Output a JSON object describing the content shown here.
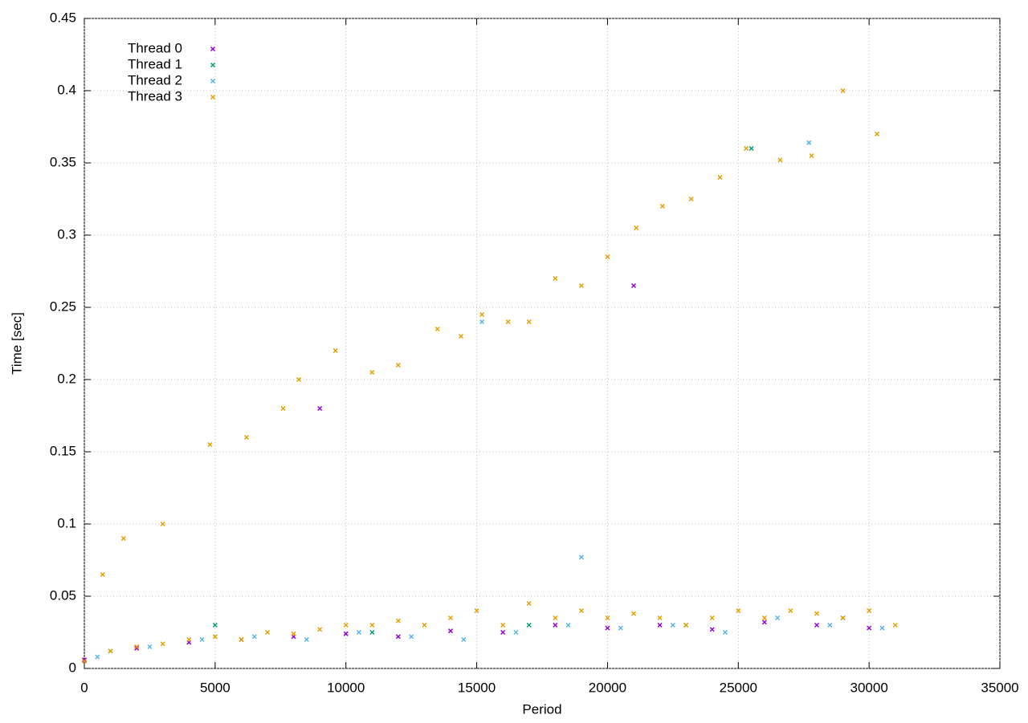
{
  "chart_data": {
    "type": "scatter",
    "x_label": "Period",
    "y_label": "Time [sec]",
    "xlim": [
      0,
      35000
    ],
    "xticks": [
      0,
      5000,
      10000,
      15000,
      20000,
      25000,
      30000,
      35000
    ],
    "ylim": [
      0,
      0.45
    ],
    "yticks": [
      0,
      0.05,
      0.1,
      0.15,
      0.2,
      0.25,
      0.3,
      0.35,
      0.4,
      0.45
    ],
    "grid": true,
    "legend": "top-left",
    "series": [
      {
        "name": "Thread 0",
        "color": "#9400d3",
        "x": [
          0,
          2000,
          4000,
          6000,
          8000,
          10000,
          12000,
          14000,
          16000,
          18000,
          20000,
          22000,
          24000,
          26000,
          28000,
          30000,
          9000,
          21000
        ],
        "values": [
          0.006,
          0.014,
          0.018,
          0.02,
          0.022,
          0.024,
          0.022,
          0.026,
          0.025,
          0.03,
          0.028,
          0.03,
          0.027,
          0.032,
          0.03,
          0.028,
          0.18,
          0.265
        ]
      },
      {
        "name": "Thread 1",
        "color": "#009e73",
        "x": [
          1000,
          5000,
          11000,
          17000,
          23000,
          29000,
          25500
        ],
        "values": [
          0.012,
          0.03,
          0.025,
          0.03,
          0.03,
          0.035,
          0.36
        ]
      },
      {
        "name": "Thread 2",
        "color": "#56b4e9",
        "x": [
          500,
          2500,
          4500,
          6500,
          8500,
          10500,
          12500,
          14500,
          16500,
          18500,
          20500,
          22500,
          24500,
          26500,
          28500,
          30500,
          19000,
          15200,
          27700
        ],
        "values": [
          0.008,
          0.015,
          0.02,
          0.022,
          0.02,
          0.025,
          0.022,
          0.02,
          0.025,
          0.03,
          0.028,
          0.03,
          0.025,
          0.035,
          0.03,
          0.028,
          0.077,
          0.24,
          0.364
        ]
      },
      {
        "name": "Thread 3",
        "color": "#e69f00",
        "x": [
          0,
          1000,
          2000,
          3000,
          4000,
          5000,
          6000,
          7000,
          8000,
          9000,
          10000,
          11000,
          12000,
          13000,
          14000,
          15000,
          16000,
          17000,
          18000,
          19000,
          20000,
          21000,
          22000,
          23000,
          24000,
          25000,
          26000,
          27000,
          28000,
          29000,
          30000,
          31000,
          700,
          1500,
          3000,
          4800,
          6200,
          7600,
          8200,
          9600,
          11000,
          12000,
          13500,
          14400,
          15200,
          16200,
          17000,
          18000,
          19000,
          20000,
          21100,
          22100,
          23200,
          24300,
          25300,
          26600,
          27800,
          29000,
          30300
        ],
        "values": [
          0.005,
          0.012,
          0.015,
          0.017,
          0.02,
          0.022,
          0.02,
          0.025,
          0.024,
          0.027,
          0.03,
          0.03,
          0.033,
          0.03,
          0.035,
          0.04,
          0.03,
          0.045,
          0.035,
          0.04,
          0.035,
          0.038,
          0.035,
          0.03,
          0.035,
          0.04,
          0.035,
          0.04,
          0.038,
          0.035,
          0.04,
          0.03,
          0.065,
          0.09,
          0.1,
          0.155,
          0.16,
          0.18,
          0.2,
          0.22,
          0.205,
          0.21,
          0.235,
          0.23,
          0.245,
          0.24,
          0.24,
          0.27,
          0.265,
          0.285,
          0.305,
          0.32,
          0.325,
          0.34,
          0.36,
          0.352,
          0.355,
          0.4,
          0.37
        ]
      }
    ]
  }
}
